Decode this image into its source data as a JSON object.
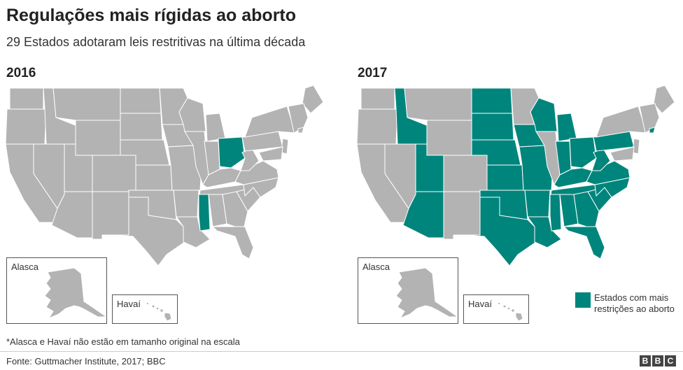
{
  "title": "Regulações mais rígidas ao aborto",
  "subtitle": "29 Estados adotaram leis restritivas na última década",
  "colors": {
    "restricted": "#00857c",
    "other": "#b3b3b3",
    "border": "#ffffff"
  },
  "maps": [
    {
      "year": "2016",
      "restricted_states": [
        "Ohio",
        "Mississippi"
      ],
      "alaska_label": "Alasca",
      "hawaii_label": "Havaí"
    },
    {
      "year": "2017",
      "restricted_states": [
        "Idaho",
        "Utah",
        "Arizona",
        "North Dakota",
        "South Dakota",
        "Nebraska",
        "Kansas",
        "Oklahoma",
        "Texas",
        "Iowa",
        "Missouri",
        "Arkansas",
        "Louisiana",
        "Wisconsin",
        "Michigan",
        "Indiana",
        "Ohio",
        "Kentucky",
        "Tennessee",
        "Mississippi",
        "Alabama",
        "Georgia",
        "Florida",
        "South Carolina",
        "North Carolina",
        "Virginia",
        "West Virginia",
        "Pennsylvania",
        "Rhode Island"
      ],
      "alaska_label": "Alasca",
      "hawaii_label": "Havaí"
    }
  ],
  "legend": {
    "label": "Estados com mais restrições ao aborto"
  },
  "footnote": "*Alasca e Havaí não estão em tamanho original na escala",
  "source": "Fonte: Guttmacher Institute, 2017; BBC",
  "logo": [
    "B",
    "B",
    "C"
  ]
}
